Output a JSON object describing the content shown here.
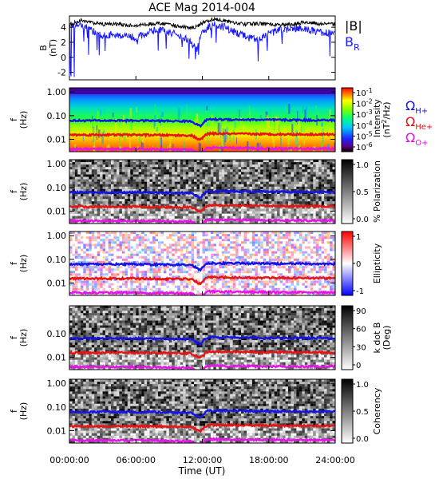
{
  "title": "ACE Mag 2014-004",
  "xlabel": "Time (UT)",
  "x_ticks": [
    "00:00:00",
    "06:00:00",
    "12:00:00",
    "18:00:00",
    "24:00:00"
  ],
  "top_panel": {
    "ylabel_1": "B",
    "ylabel_2": "(nT)",
    "y_ticks": [
      "4",
      "2",
      "0",
      "-2"
    ],
    "legend_B": "|B|",
    "legend_BR": "B",
    "legend_BR_sub": "R"
  },
  "spectral_panels": [
    {
      "name": "intensity",
      "ylabel_1": "f",
      "ylabel_2": "(Hz)",
      "y_ticks": [
        "1.00",
        "0.10",
        "0.01"
      ],
      "cbar_label_1": "Intensity",
      "cbar_label_2": "(nT",
      "cbar_label_2_sup": "2",
      "cbar_label_2b": "/Hz)",
      "cbar_ticks": [
        "10",
        "10",
        "10",
        "10",
        "10",
        "10"
      ],
      "cbar_ticks_exp": [
        "-1",
        "-2",
        "-3",
        "-4",
        "-5",
        "-6"
      ]
    },
    {
      "name": "polarization",
      "ylabel_1": "f",
      "ylabel_2": "(Hz)",
      "y_ticks": [
        "1.00",
        "0.10",
        "0.01"
      ],
      "cbar_label_1": "% Polarization",
      "cbar_ticks": [
        "1.0",
        "0.5",
        "0.0"
      ]
    },
    {
      "name": "ellipticity",
      "ylabel_1": "f",
      "ylabel_2": "(Hz)",
      "y_ticks": [
        "1.00",
        "0.10",
        "0.01"
      ],
      "cbar_label_1": "Ellipticity",
      "cbar_ticks": [
        "1",
        "0",
        "-1"
      ]
    },
    {
      "name": "kdotb",
      "ylabel_1": "f",
      "ylabel_2": "(Hz)",
      "y_ticks": [
        "0.10",
        "0.01"
      ],
      "cbar_label_1": "k dot B",
      "cbar_label_2": "(Deg)",
      "cbar_ticks": [
        "90",
        "60",
        "30",
        "0"
      ]
    },
    {
      "name": "coherency",
      "ylabel_1": "f",
      "ylabel_2": "(Hz)",
      "y_ticks": [
        "1.00",
        "0.10",
        "0.01"
      ],
      "cbar_label_1": "Coherency",
      "cbar_ticks": [
        "1.0",
        "0.5",
        "0.0"
      ]
    }
  ],
  "gyro_legend": [
    {
      "symbol": "Ω",
      "sub": "H+",
      "color": "#1010e0"
    },
    {
      "symbol": "Ω",
      "sub": "He+",
      "color": "#e01010"
    },
    {
      "symbol": "Ω",
      "sub": "O+",
      "color": "#e010e0"
    }
  ],
  "colors": {
    "B": "#000000",
    "BR": "#1a1aff",
    "H": "#1414e6",
    "He": "#e61414",
    "O": "#e614e6"
  },
  "chart_data": {
    "type": "line",
    "title": "ACE Mag 2014-004",
    "xlabel": "Time (UT)",
    "xlim": [
      "00:00:00",
      "24:00:00"
    ],
    "series": [
      {
        "name": "|B|",
        "x_hours": [
          0,
          1,
          2,
          3,
          4,
          5,
          6,
          7,
          8,
          9,
          10,
          11,
          11.5,
          12,
          13,
          14,
          15,
          16,
          17,
          18,
          19,
          20,
          21,
          22,
          23,
          24
        ],
        "values": [
          4.3,
          4.9,
          4.6,
          4.4,
          4.5,
          4.3,
          4.2,
          4.4,
          4.5,
          4.3,
          4.1,
          3.9,
          4.1,
          4.6,
          5.1,
          4.9,
          4.6,
          4.4,
          4.5,
          4.4,
          4.3,
          4.4,
          4.6,
          4.6,
          4.4,
          4.4
        ]
      },
      {
        "name": "B",
        "x_hours": [
          0,
          1,
          2,
          3,
          4,
          5,
          6,
          7,
          8,
          9,
          10,
          11,
          11.5,
          12,
          13,
          14,
          15,
          16,
          17,
          18,
          19,
          20,
          21,
          22,
          23,
          24
        ],
        "values": [
          3.8,
          4.3,
          3.6,
          2.8,
          3.1,
          2.8,
          2.6,
          3.2,
          3.7,
          3.3,
          2.9,
          2.0,
          1.0,
          3.5,
          4.3,
          4.0,
          3.3,
          2.7,
          2.3,
          3.1,
          3.6,
          3.8,
          3.9,
          3.5,
          3.2,
          3.3
        ]
      },
      {
        "name": "Ω H+",
        "x_hours": [
          0,
          6,
          11,
          11.8,
          12.5,
          18,
          24
        ],
        "values": [
          0.062,
          0.062,
          0.058,
          0.035,
          0.07,
          0.066,
          0.064
        ]
      },
      {
        "name": "Ω He+",
        "x_hours": [
          0,
          6,
          11,
          11.8,
          12.5,
          18,
          24
        ],
        "values": [
          0.0155,
          0.0155,
          0.0145,
          0.009,
          0.0175,
          0.0165,
          0.016
        ]
      },
      {
        "name": "Ω O+",
        "x_hours": [
          0,
          6,
          11,
          11.8,
          12.5,
          18,
          24
        ],
        "values": [
          0.0039,
          0.0039,
          0.0036,
          0.0022,
          0.0044,
          0.0041,
          0.004
        ]
      }
    ],
    "B_ylim": [
      -3,
      5.5
    ],
    "f_ylim": [
      0.003,
      1.5
    ],
    "f_scale": "log",
    "colorbars": {
      "intensity": {
        "range_exp": [
          -6,
          -0.5
        ],
        "scale": "log",
        "colormap": "rainbow"
      },
      "polarization": {
        "range": [
          0,
          1
        ],
        "colormap": "grayscale"
      },
      "ellipticity": {
        "range": [
          -1,
          1
        ],
        "colormap": "blue-white-red"
      },
      "kdotb": {
        "range": [
          0,
          90
        ],
        "colormap": "grayscale"
      },
      "coherency": {
        "range": [
          0,
          1
        ],
        "colormap": "grayscale"
      }
    }
  }
}
